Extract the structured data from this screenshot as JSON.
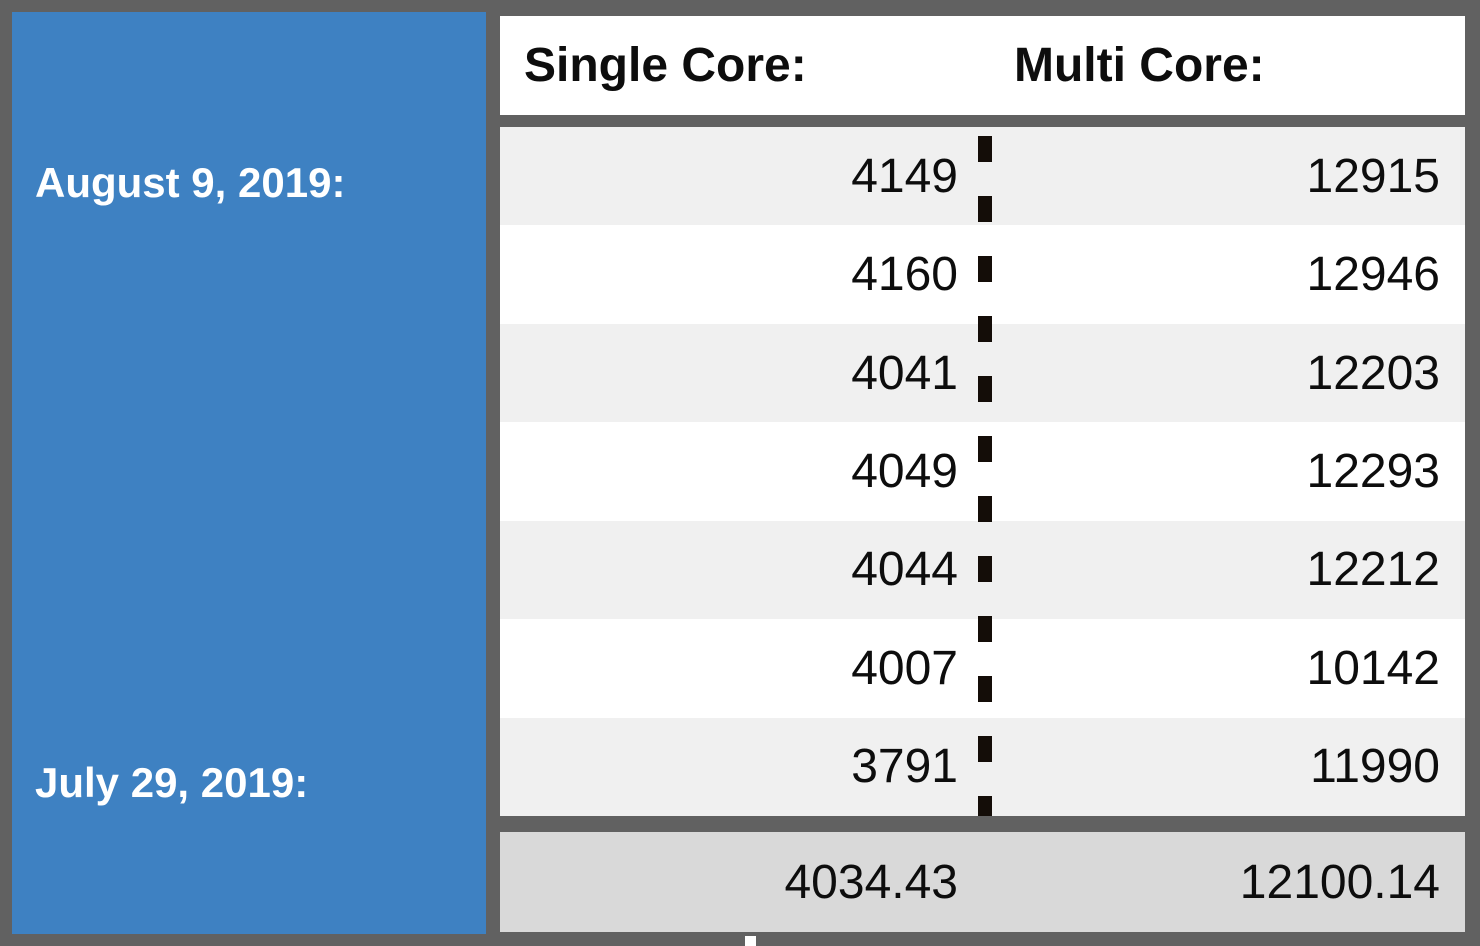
{
  "colors": {
    "frame_gray": "#616161",
    "panel_blue": "#3e81c2",
    "row_stripe_gray": "#f0f0f0",
    "footer_gray": "#d9d9d9",
    "divider_black": "#140d08",
    "text_black": "#0d0d0d",
    "date_text_white": "#ffffff"
  },
  "sidebar": {
    "top_date": "August 9, 2019:",
    "bottom_date": "July 29, 2019:"
  },
  "table": {
    "header": {
      "single": "Single Core:",
      "multi": "Multi Core:"
    },
    "rows": [
      {
        "single": "4149",
        "multi": "12915"
      },
      {
        "single": "4160",
        "multi": "12946"
      },
      {
        "single": "4041",
        "multi": "12203"
      },
      {
        "single": "4049",
        "multi": "12293"
      },
      {
        "single": "4044",
        "multi": "12212"
      },
      {
        "single": "4007",
        "multi": "10142"
      },
      {
        "single": "3791",
        "multi": "11990"
      }
    ],
    "footer": {
      "single_avg": "4034.43",
      "multi_avg": "12100.14"
    }
  }
}
